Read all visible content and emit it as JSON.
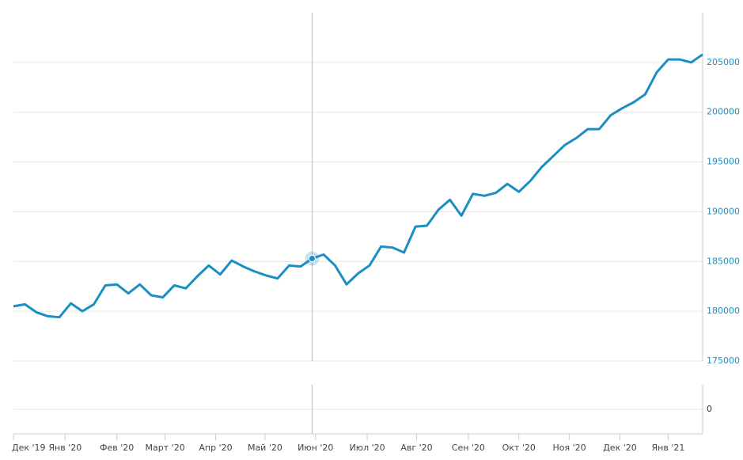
{
  "chart_data": [
    {
      "type": "line",
      "series": [
        {
          "color": "#1b8fc2",
          "values": [
            180500,
            180700,
            179900,
            179500,
            179400,
            180800,
            180000,
            180700,
            182600,
            182700,
            181800,
            182700,
            181600,
            181400,
            182600,
            182300,
            183500,
            184600,
            183700,
            185100,
            184500,
            184000,
            183600,
            183300,
            184600,
            184500,
            185300,
            185700,
            184600,
            182700,
            183800,
            184600,
            186500,
            186400,
            185900,
            188500,
            188600,
            190200,
            191200,
            189600,
            191800,
            191600,
            191900,
            192800,
            192000,
            193100,
            194500,
            195600,
            196700,
            197400,
            198300,
            198300,
            199700,
            200400,
            201000,
            201800,
            204000,
            205300,
            205300,
            205000,
            205800
          ]
        }
      ],
      "xlim": [
        0,
        60
      ],
      "xticks": [
        {
          "value": 0,
          "label": "Дек '19"
        },
        {
          "value": 4.5,
          "label": "Янв '20"
        },
        {
          "value": 9,
          "label": "Фев '20"
        },
        {
          "value": 13.2,
          "label": "Март '20"
        },
        {
          "value": 17.6,
          "label": "Апр '20"
        },
        {
          "value": 21.9,
          "label": "Май '20"
        },
        {
          "value": 26.3,
          "label": "Июн '20"
        },
        {
          "value": 30.8,
          "label": "Июл '20"
        },
        {
          "value": 35.1,
          "label": "Авг '20"
        },
        {
          "value": 39.6,
          "label": "Сен '20"
        },
        {
          "value": 44,
          "label": "Окт '20"
        },
        {
          "value": 48.4,
          "label": "Ноя '20"
        },
        {
          "value": 52.8,
          "label": "Дек '20"
        },
        {
          "value": 57,
          "label": "Янв '21"
        }
      ],
      "ylim": [
        175000,
        210000
      ],
      "yticks": [
        175000,
        180000,
        185000,
        190000,
        195000,
        200000,
        205000
      ],
      "grid": true,
      "crosshair": 26
    },
    {
      "type": "panel",
      "yticks": [
        0
      ],
      "grid": true
    }
  ]
}
